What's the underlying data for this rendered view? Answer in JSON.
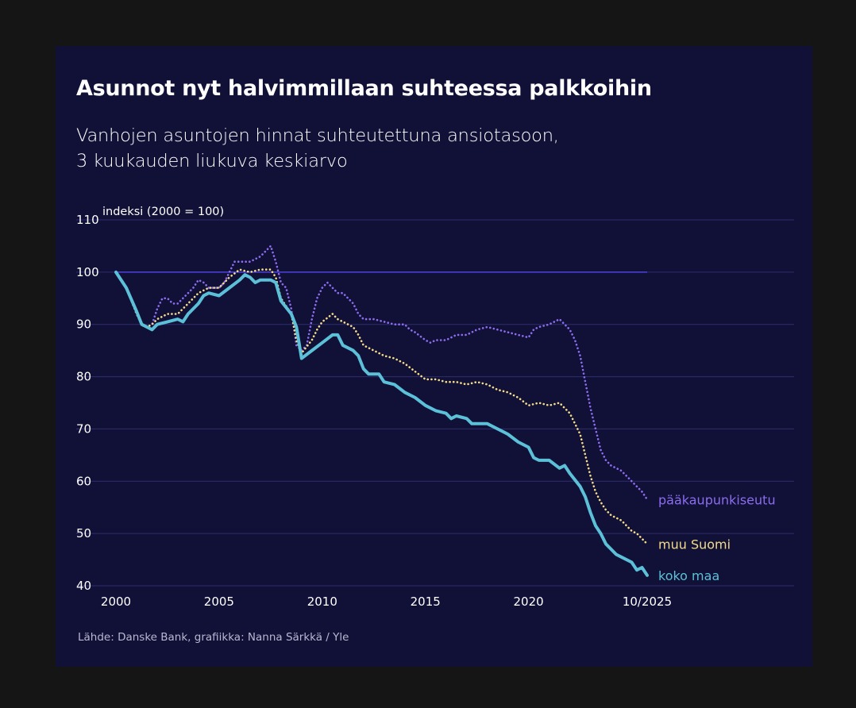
{
  "title": "Asunnot nyt halvimmillaan suhteessa palkkoihin",
  "subtitle_lines": [
    "Vanhojen asuntojen hinnat suhteutettuna ansiotasoon,",
    "3 kuukauden liukuva keskiarvo"
  ],
  "source": "Lähde: Danske Bank, grafiikka: Nanna Särkkä / Yle",
  "colors": {
    "background": "#111036",
    "grid": "#2f2d6e",
    "baseline": "#4b3fd1",
    "koko_maa": "#5bc0d8",
    "muu_suomi": "#f3dc8a",
    "paakaupunkiseutu": "#8b6df0"
  },
  "chart_data": {
    "type": "line",
    "title": "Asunnot nyt halvimmillaan suhteessa palkkoihin",
    "ylabel": "indeksi (2000 = 100)",
    "ylim": [
      40,
      110
    ],
    "yticks": [
      40,
      50,
      60,
      70,
      80,
      90,
      100,
      110
    ],
    "xlim": [
      2000,
      2025.83
    ],
    "xticks": [
      {
        "value": 2000,
        "label": "2000"
      },
      {
        "value": 2005,
        "label": "2005"
      },
      {
        "value": 2010,
        "label": "2010"
      },
      {
        "value": 2015,
        "label": "2015"
      },
      {
        "value": 2020,
        "label": "2020"
      },
      {
        "value": 2025.75,
        "label": "10/2025"
      }
    ],
    "grid": true,
    "reference_line": 100,
    "series": [
      {
        "name": "pääkaupunkiseutu",
        "key": "paakaupunkiseutu",
        "style": "dotted",
        "points": [
          [
            2000,
            100
          ],
          [
            2000.5,
            97
          ],
          [
            2001,
            92
          ],
          [
            2001.25,
            90
          ],
          [
            2001.5,
            89.5
          ],
          [
            2001.75,
            90
          ],
          [
            2002,
            93
          ],
          [
            2002.25,
            95
          ],
          [
            2002.5,
            95
          ],
          [
            2002.75,
            94
          ],
          [
            2003,
            94
          ],
          [
            2003.25,
            95
          ],
          [
            2003.5,
            96
          ],
          [
            2003.75,
            97
          ],
          [
            2004,
            98.5
          ],
          [
            2004.25,
            98
          ],
          [
            2004.5,
            97
          ],
          [
            2004.75,
            97
          ],
          [
            2005,
            97
          ],
          [
            2005.25,
            98
          ],
          [
            2005.5,
            100
          ],
          [
            2005.75,
            102
          ],
          [
            2006,
            102
          ],
          [
            2006.5,
            102
          ],
          [
            2007,
            103
          ],
          [
            2007.25,
            104
          ],
          [
            2007.5,
            105
          ],
          [
            2007.75,
            102
          ],
          [
            2008,
            98
          ],
          [
            2008.25,
            97
          ],
          [
            2008.5,
            93
          ],
          [
            2008.75,
            86
          ],
          [
            2009,
            85
          ],
          [
            2009.25,
            86
          ],
          [
            2009.5,
            91
          ],
          [
            2009.75,
            95
          ],
          [
            2010,
            97
          ],
          [
            2010.25,
            98
          ],
          [
            2010.5,
            97
          ],
          [
            2010.75,
            96
          ],
          [
            2011,
            96
          ],
          [
            2011.25,
            95
          ],
          [
            2011.5,
            94
          ],
          [
            2011.75,
            92
          ],
          [
            2012,
            91
          ],
          [
            2012.5,
            91
          ],
          [
            2013,
            90.5
          ],
          [
            2013.5,
            90
          ],
          [
            2014,
            90
          ],
          [
            2014.25,
            89
          ],
          [
            2014.5,
            88.5
          ],
          [
            2015,
            87
          ],
          [
            2015.25,
            86.5
          ],
          [
            2015.5,
            87
          ],
          [
            2016,
            87
          ],
          [
            2016.5,
            88
          ],
          [
            2017,
            88
          ],
          [
            2017.5,
            89
          ],
          [
            2018,
            89.5
          ],
          [
            2018.5,
            89
          ],
          [
            2019,
            88.5
          ],
          [
            2019.5,
            88
          ],
          [
            2020,
            87.5
          ],
          [
            2020.25,
            89
          ],
          [
            2020.5,
            89.5
          ],
          [
            2021,
            90
          ],
          [
            2021.5,
            91
          ],
          [
            2021.75,
            90
          ],
          [
            2022,
            89
          ],
          [
            2022.25,
            87
          ],
          [
            2022.5,
            84
          ],
          [
            2022.75,
            79
          ],
          [
            2023,
            74
          ],
          [
            2023.25,
            70
          ],
          [
            2023.5,
            66
          ],
          [
            2023.75,
            64
          ],
          [
            2024,
            63
          ],
          [
            2024.5,
            62
          ],
          [
            2025,
            60
          ],
          [
            2025.25,
            59
          ],
          [
            2025.5,
            58
          ],
          [
            2025.75,
            56.5
          ]
        ]
      },
      {
        "name": "muu Suomi",
        "key": "muu_suomi",
        "style": "dotted",
        "points": [
          [
            2000,
            100
          ],
          [
            2000.5,
            97
          ],
          [
            2001,
            92
          ],
          [
            2001.25,
            90
          ],
          [
            2001.5,
            89.5
          ],
          [
            2001.75,
            90
          ],
          [
            2002,
            91
          ],
          [
            2002.5,
            92
          ],
          [
            2003,
            92
          ],
          [
            2003.5,
            94
          ],
          [
            2004,
            96
          ],
          [
            2004.5,
            97
          ],
          [
            2005,
            97
          ],
          [
            2005.5,
            99
          ],
          [
            2006,
            100.5
          ],
          [
            2006.5,
            100
          ],
          [
            2007,
            100.5
          ],
          [
            2007.5,
            100.5
          ],
          [
            2007.75,
            99
          ],
          [
            2008,
            95
          ],
          [
            2008.5,
            92
          ],
          [
            2008.75,
            87
          ],
          [
            2009,
            84.5
          ],
          [
            2009.5,
            87
          ],
          [
            2009.75,
            89
          ],
          [
            2010,
            90.5
          ],
          [
            2010.5,
            92
          ],
          [
            2010.75,
            91
          ],
          [
            2011,
            90.5
          ],
          [
            2011.5,
            89.5
          ],
          [
            2011.75,
            88
          ],
          [
            2012,
            86
          ],
          [
            2012.5,
            85
          ],
          [
            2013,
            84
          ],
          [
            2013.5,
            83.5
          ],
          [
            2014,
            82.5
          ],
          [
            2014.5,
            81
          ],
          [
            2015,
            79.5
          ],
          [
            2015.5,
            79.5
          ],
          [
            2016,
            79
          ],
          [
            2016.5,
            79
          ],
          [
            2017,
            78.5
          ],
          [
            2017.5,
            79
          ],
          [
            2018,
            78.5
          ],
          [
            2018.5,
            77.5
          ],
          [
            2019,
            77
          ],
          [
            2019.5,
            76
          ],
          [
            2020,
            74.5
          ],
          [
            2020.5,
            75
          ],
          [
            2021,
            74.5
          ],
          [
            2021.5,
            75
          ],
          [
            2022,
            73
          ],
          [
            2022.25,
            71
          ],
          [
            2022.5,
            69
          ],
          [
            2022.75,
            65
          ],
          [
            2023,
            61
          ],
          [
            2023.25,
            58
          ],
          [
            2023.5,
            56
          ],
          [
            2023.75,
            54.5
          ],
          [
            2024,
            53.5
          ],
          [
            2024.5,
            52.5
          ],
          [
            2025,
            50.5
          ],
          [
            2025.25,
            50
          ],
          [
            2025.5,
            49
          ],
          [
            2025.75,
            48
          ]
        ]
      },
      {
        "name": "koko maa",
        "key": "koko_maa",
        "style": "solid",
        "points": [
          [
            2000,
            100
          ],
          [
            2000.5,
            97
          ],
          [
            2001,
            92.5
          ],
          [
            2001.25,
            90
          ],
          [
            2001.5,
            89.5
          ],
          [
            2001.75,
            89
          ],
          [
            2002,
            90
          ],
          [
            2002.5,
            90.5
          ],
          [
            2003,
            91
          ],
          [
            2003.25,
            90.5
          ],
          [
            2003.5,
            92
          ],
          [
            2004,
            94
          ],
          [
            2004.25,
            95.5
          ],
          [
            2004.5,
            96
          ],
          [
            2005,
            95.5
          ],
          [
            2005.5,
            97
          ],
          [
            2006,
            98.5
          ],
          [
            2006.25,
            99.5
          ],
          [
            2006.5,
            99
          ],
          [
            2006.75,
            98
          ],
          [
            2007,
            98.5
          ],
          [
            2007.5,
            98.5
          ],
          [
            2007.75,
            98
          ],
          [
            2008,
            94.5
          ],
          [
            2008.5,
            92
          ],
          [
            2008.75,
            89.5
          ],
          [
            2009,
            83.5
          ],
          [
            2009.5,
            85
          ],
          [
            2010,
            86.5
          ],
          [
            2010.5,
            88
          ],
          [
            2010.75,
            88
          ],
          [
            2011,
            86
          ],
          [
            2011.5,
            85
          ],
          [
            2011.75,
            84
          ],
          [
            2012,
            81.5
          ],
          [
            2012.25,
            80.5
          ],
          [
            2012.75,
            80.5
          ],
          [
            2013,
            79
          ],
          [
            2013.5,
            78.5
          ],
          [
            2014,
            77
          ],
          [
            2014.5,
            76
          ],
          [
            2015,
            74.5
          ],
          [
            2015.5,
            73.5
          ],
          [
            2016,
            73
          ],
          [
            2016.25,
            72
          ],
          [
            2016.5,
            72.5
          ],
          [
            2017,
            72
          ],
          [
            2017.25,
            71
          ],
          [
            2017.5,
            71
          ],
          [
            2018,
            71
          ],
          [
            2018.5,
            70
          ],
          [
            2019,
            69
          ],
          [
            2019.5,
            67.5
          ],
          [
            2020,
            66.5
          ],
          [
            2020.25,
            64.5
          ],
          [
            2020.5,
            64
          ],
          [
            2021,
            64
          ],
          [
            2021.5,
            62.5
          ],
          [
            2021.75,
            63
          ],
          [
            2022,
            61.5
          ],
          [
            2022.5,
            59
          ],
          [
            2022.75,
            57
          ],
          [
            2023,
            54
          ],
          [
            2023.25,
            51.5
          ],
          [
            2023.5,
            50
          ],
          [
            2023.75,
            48
          ],
          [
            2024,
            47
          ],
          [
            2024.25,
            46
          ],
          [
            2024.5,
            45.5
          ],
          [
            2025,
            44.5
          ],
          [
            2025.25,
            43
          ],
          [
            2025.5,
            43.5
          ],
          [
            2025.75,
            42
          ]
        ]
      }
    ]
  }
}
